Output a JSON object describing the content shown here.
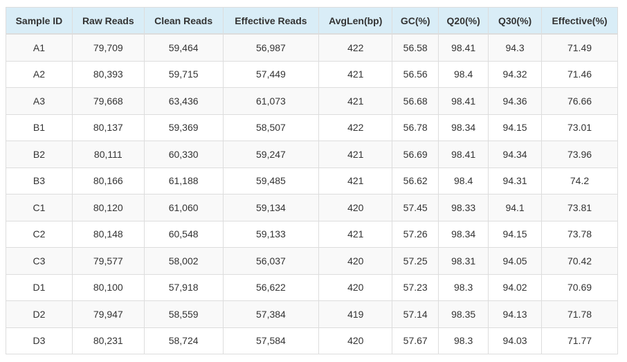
{
  "table": {
    "headers": [
      "Sample ID",
      "Raw Reads",
      "Clean Reads",
      "Effective Reads",
      "AvgLen(bp)",
      "GC(%)",
      "Q20(%)",
      "Q30(%)",
      "Effective(%)"
    ],
    "rows": [
      [
        "A1",
        "79,709",
        "59,464",
        "56,987",
        "422",
        "56.58",
        "98.41",
        "94.3",
        "71.49"
      ],
      [
        "A2",
        "80,393",
        "59,715",
        "57,449",
        "421",
        "56.56",
        "98.4",
        "94.32",
        "71.46"
      ],
      [
        "A3",
        "79,668",
        "63,436",
        "61,073",
        "421",
        "56.68",
        "98.41",
        "94.36",
        "76.66"
      ],
      [
        "B1",
        "80,137",
        "59,369",
        "58,507",
        "422",
        "56.78",
        "98.34",
        "94.15",
        "73.01"
      ],
      [
        "B2",
        "80,111",
        "60,330",
        "59,247",
        "421",
        "56.69",
        "98.41",
        "94.34",
        "73.96"
      ],
      [
        "B3",
        "80,166",
        "61,188",
        "59,485",
        "421",
        "56.62",
        "98.4",
        "94.31",
        "74.2"
      ],
      [
        "C1",
        "80,120",
        "61,060",
        "59,134",
        "420",
        "57.45",
        "98.33",
        "94.1",
        "73.81"
      ],
      [
        "C2",
        "80,148",
        "60,548",
        "59,133",
        "421",
        "57.26",
        "98.34",
        "94.15",
        "73.78"
      ],
      [
        "C3",
        "79,577",
        "58,002",
        "56,037",
        "420",
        "57.25",
        "98.31",
        "94.05",
        "70.42"
      ],
      [
        "D1",
        "80,100",
        "57,918",
        "56,622",
        "420",
        "57.23",
        "98.3",
        "94.02",
        "70.69"
      ],
      [
        "D2",
        "79,947",
        "58,559",
        "57,384",
        "419",
        "57.14",
        "98.35",
        "94.13",
        "71.78"
      ],
      [
        "D3",
        "80,231",
        "58,724",
        "57,584",
        "420",
        "57.67",
        "98.3",
        "94.03",
        "71.77"
      ]
    ]
  },
  "colors": {
    "header_bg": "#d9edf7",
    "stripe_bg": "#f9f9f9",
    "border": "#dddddd",
    "text": "#333333"
  }
}
